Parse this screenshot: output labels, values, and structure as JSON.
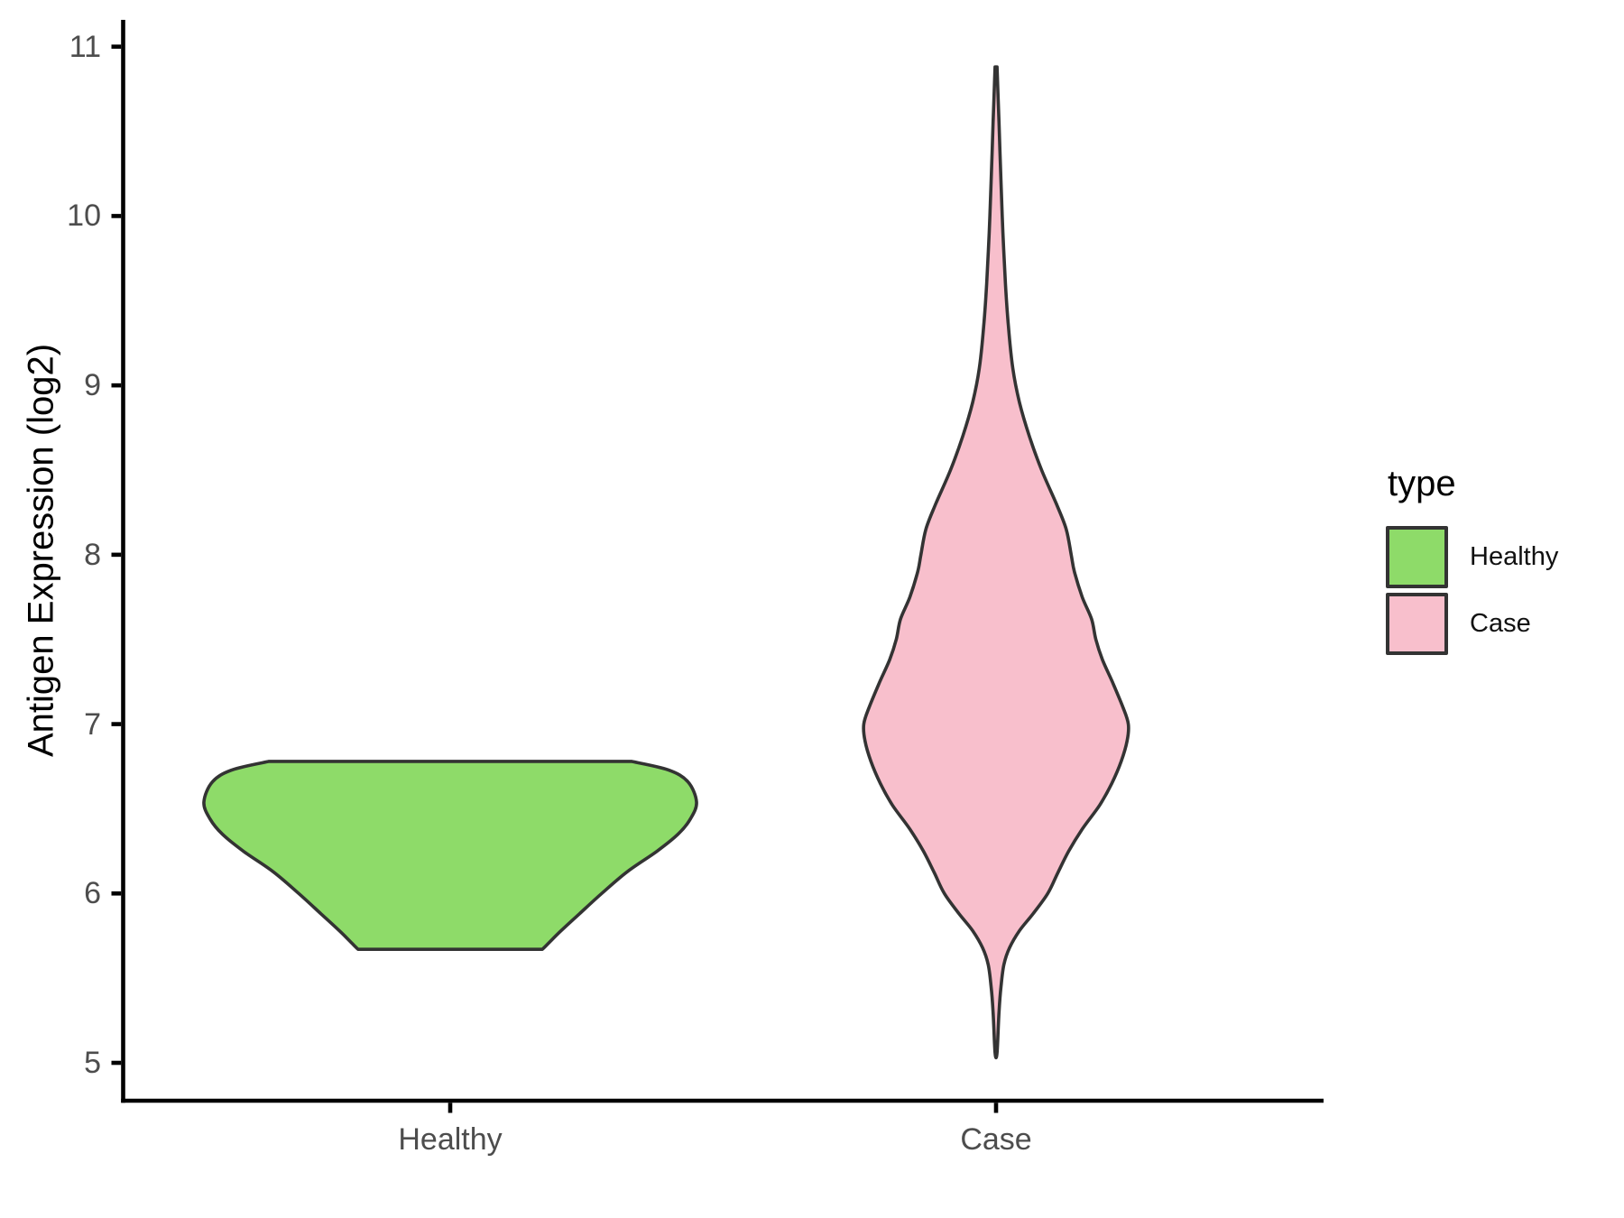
{
  "figure": {
    "background": "#FFFFFF"
  },
  "y_axis": {
    "title": "Antigen Expression (log2)",
    "tick_labels": [
      "5",
      "6",
      "7",
      "8",
      "9",
      "10",
      "11"
    ],
    "tick_label_color": "#4D4D4D",
    "line_color": "#000000"
  },
  "x_axis": {
    "tick_labels": [
      "Healthy",
      "Case"
    ],
    "tick_label_color": "#4D4D4D",
    "line_color": "#000000"
  },
  "legend": {
    "title": "type",
    "items": [
      {
        "label": "Healthy",
        "color": "#8EDB69"
      },
      {
        "label": "Case",
        "color": "#F8BFCC"
      }
    ]
  },
  "chart_data": {
    "type": "violin",
    "title": "",
    "xlabel": "",
    "ylabel": "Antigen Expression (log2)",
    "categories": [
      "Healthy",
      "Case"
    ],
    "y_ticks": [
      5,
      6,
      7,
      8,
      9,
      10,
      11
    ],
    "ylim": [
      4.78,
      11.16
    ],
    "grid": false,
    "legend_title": "type",
    "legend_position": "right",
    "outline_color": "#333333",
    "series": [
      {
        "name": "Healthy",
        "fill": "#8EDB69",
        "y_min": 5.67,
        "y_max": 6.78,
        "peak_at": 6.54,
        "truncated_flat_ends": true,
        "profile": [
          [
            6.78,
            0.736
          ],
          [
            6.73,
            0.885
          ],
          [
            6.66,
            0.965
          ],
          [
            6.54,
            1.0
          ],
          [
            6.44,
            0.975
          ],
          [
            6.35,
            0.925
          ],
          [
            6.25,
            0.84
          ],
          [
            6.13,
            0.72
          ],
          [
            6.0,
            0.615
          ],
          [
            5.88,
            0.525
          ],
          [
            5.78,
            0.45
          ],
          [
            5.7,
            0.395
          ],
          [
            5.67,
            0.374
          ]
        ]
      },
      {
        "name": "Case",
        "fill": "#F8BFCC",
        "y_min": 5.06,
        "y_max": 10.88,
        "peak_at": 7.0,
        "truncated_flat_ends": false,
        "profile": [
          [
            10.88,
            0.004
          ],
          [
            10.55,
            0.012
          ],
          [
            10.2,
            0.02
          ],
          [
            9.9,
            0.028
          ],
          [
            9.6,
            0.038
          ],
          [
            9.35,
            0.05
          ],
          [
            9.1,
            0.068
          ],
          [
            8.9,
            0.095
          ],
          [
            8.7,
            0.135
          ],
          [
            8.5,
            0.185
          ],
          [
            8.3,
            0.245
          ],
          [
            8.15,
            0.285
          ],
          [
            8.0,
            0.305
          ],
          [
            7.9,
            0.318
          ],
          [
            7.75,
            0.35
          ],
          [
            7.62,
            0.388
          ],
          [
            7.5,
            0.405
          ],
          [
            7.38,
            0.432
          ],
          [
            7.25,
            0.472
          ],
          [
            7.1,
            0.515
          ],
          [
            7.0,
            0.537
          ],
          [
            6.9,
            0.532
          ],
          [
            6.78,
            0.508
          ],
          [
            6.65,
            0.47
          ],
          [
            6.52,
            0.42
          ],
          [
            6.38,
            0.35
          ],
          [
            6.25,
            0.295
          ],
          [
            6.12,
            0.25
          ],
          [
            6.0,
            0.21
          ],
          [
            5.88,
            0.15
          ],
          [
            5.78,
            0.095
          ],
          [
            5.68,
            0.055
          ],
          [
            5.58,
            0.032
          ],
          [
            5.45,
            0.02
          ],
          [
            5.3,
            0.012
          ],
          [
            5.06,
            0.004
          ]
        ]
      }
    ]
  }
}
